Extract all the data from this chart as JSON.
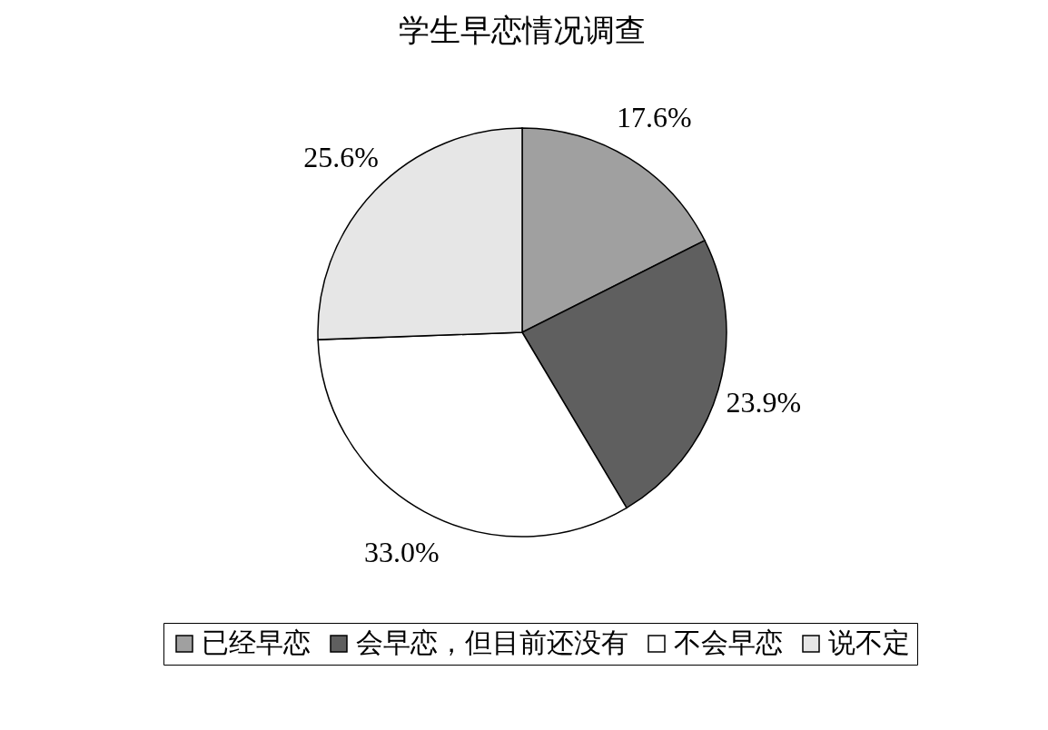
{
  "chart_data": {
    "type": "pie",
    "title": "学生早恋情况调查",
    "categories": [
      "已经早恋",
      "会早恋，但目前还没有",
      "不会早恋",
      "说不定"
    ],
    "values": [
      17.6,
      23.9,
      33.0,
      25.6
    ],
    "value_labels": [
      "17.6%",
      "23.9%",
      "33.0%",
      "25.6%"
    ],
    "colors": [
      "#a0a0a0",
      "#5f5f5f",
      "#ffffff",
      "#e6e6e6"
    ],
    "legend": "bottom"
  }
}
